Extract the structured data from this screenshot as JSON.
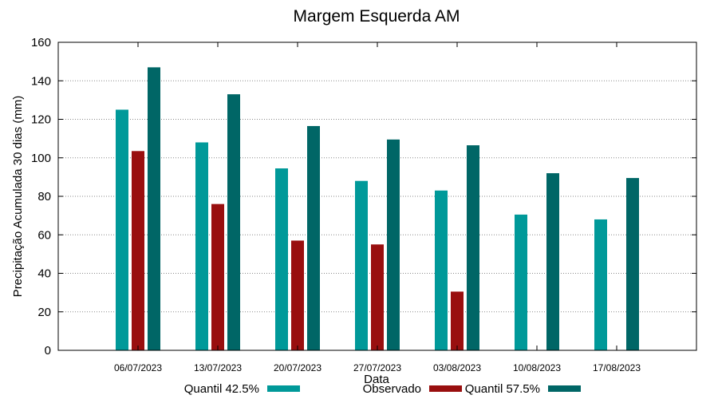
{
  "chart_data": {
    "type": "bar",
    "title": "Margem Esquerda AM",
    "xlabel": "Data",
    "ylabel": "Precipitação Acumulada 30 dias (mm)",
    "ylim": [
      0,
      160
    ],
    "yticks": [
      0,
      20,
      40,
      60,
      80,
      100,
      120,
      140,
      160
    ],
    "grid": "horizontal dotted",
    "legend_position": "bottom",
    "categories": [
      "06/07/2023",
      "13/07/2023",
      "20/07/2023",
      "27/07/2023",
      "03/08/2023",
      "10/08/2023",
      "17/08/2023"
    ],
    "series": [
      {
        "name": "Quantil 42.5%",
        "color": "#009999",
        "values": [
          125,
          108,
          94.5,
          88,
          83,
          70.5,
          68
        ]
      },
      {
        "name": "Observado",
        "color": "#990f0f",
        "values": [
          103.5,
          76,
          57,
          55,
          30.5,
          null,
          null
        ]
      },
      {
        "name": "Quantil 57.5%",
        "color": "#006666",
        "values": [
          147,
          133,
          116.5,
          109.5,
          106.5,
          92,
          89.5
        ]
      }
    ]
  }
}
